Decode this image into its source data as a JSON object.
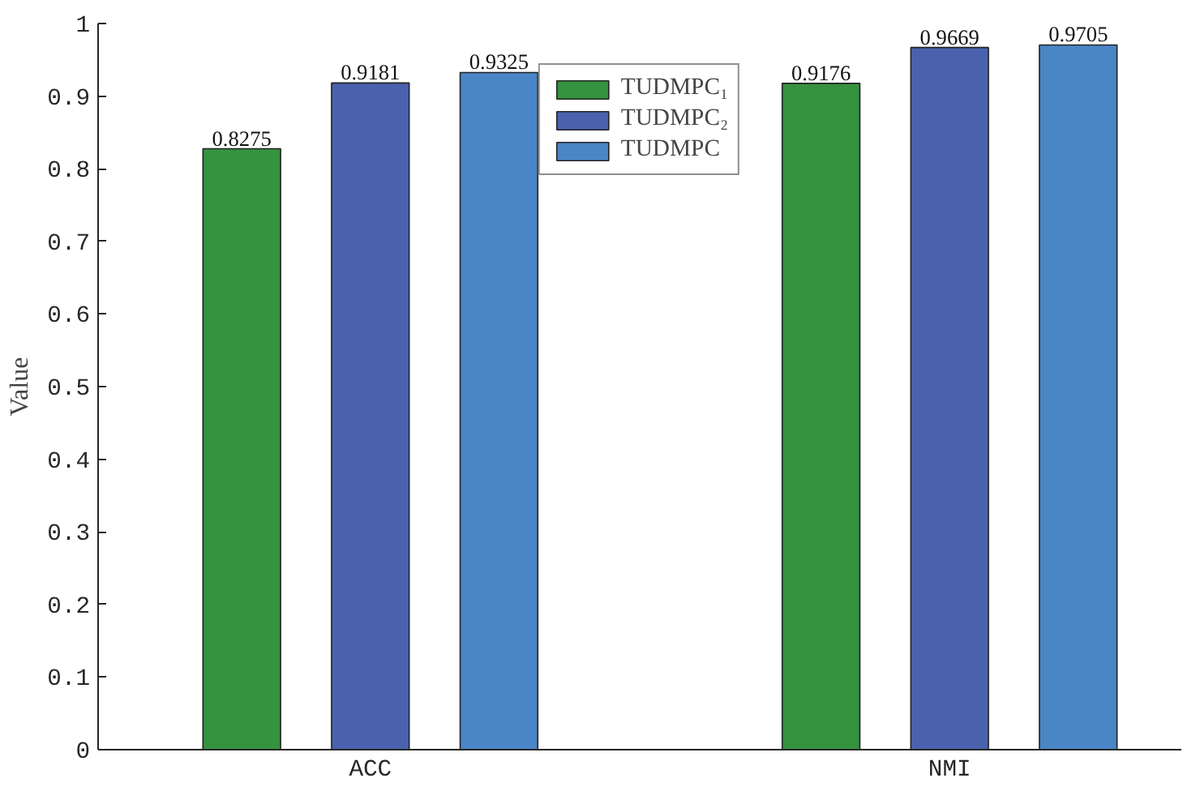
{
  "chart_data": {
    "type": "bar",
    "ylabel": "Value",
    "categories": [
      "ACC",
      "NMI"
    ],
    "series": [
      {
        "name": "TUDMPC₁",
        "color": "#35923f",
        "values": [
          0.8275,
          0.9176
        ]
      },
      {
        "name": "TUDMPC₂",
        "color": "#4a62ae",
        "values": [
          0.9181,
          0.9669
        ]
      },
      {
        "name": "TUDMPC",
        "color": "#4a86c6",
        "values": [
          0.9325,
          0.9705
        ]
      }
    ],
    "ylim": [
      0,
      1
    ],
    "yticks": [
      0,
      0.1,
      0.2,
      0.3,
      0.4,
      0.5,
      0.6,
      0.7,
      0.8,
      0.9,
      1
    ],
    "data_labels": true,
    "grid": false,
    "legend": "top"
  }
}
